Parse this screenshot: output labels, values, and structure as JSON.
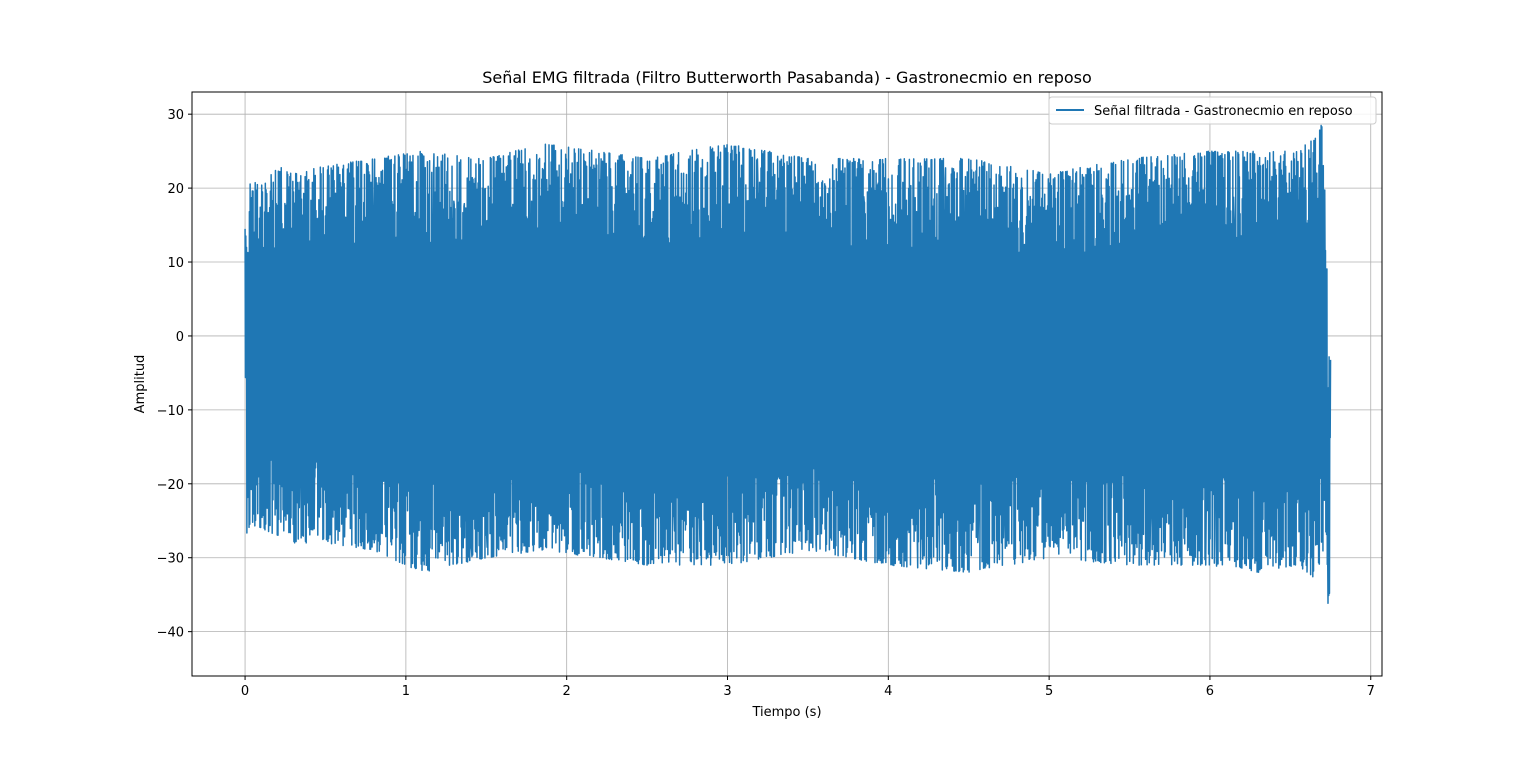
{
  "chart_data": {
    "type": "line",
    "title": "Señal EMG filtrada (Filtro Butterworth Pasabanda) - Gastronecmio en reposo",
    "xlabel": "Tiempo (s)",
    "ylabel": "Amplitud",
    "xlim": [
      -0.33,
      7.07
    ],
    "ylim": [
      -46,
      33
    ],
    "x_ticks": [
      0,
      1,
      2,
      3,
      4,
      5,
      6,
      7
    ],
    "y_ticks": [
      30,
      20,
      10,
      0,
      -10,
      -20,
      -30,
      -40
    ],
    "y_tick_labels": [
      "30",
      "20",
      "10",
      "0",
      "−10",
      "−20",
      "−30",
      "−40"
    ],
    "grid": true,
    "legend_position": "top-right",
    "series": [
      {
        "name": "Señal filtrada - Gastronecmio en reposo",
        "color": "#1f77b4",
        "x_start": 0,
        "x_end": 6.75,
        "typical_upper_peak": 22,
        "typical_lower_peak": -27,
        "max": 29,
        "min": -42,
        "envelope": [
          {
            "x": 0.0,
            "y": [
              0,
              16
            ]
          },
          {
            "x": 0.01,
            "y": [
              -27,
              16
            ]
          },
          {
            "x": 0.03,
            "y": [
              -26,
              21
            ]
          },
          {
            "x": 0.1,
            "y": [
              -26,
              21
            ]
          },
          {
            "x": 0.2,
            "y": [
              -27,
              23
            ]
          },
          {
            "x": 0.3,
            "y": [
              -28,
              22
            ]
          },
          {
            "x": 0.5,
            "y": [
              -28,
              23
            ]
          },
          {
            "x": 0.8,
            "y": [
              -29,
              24
            ]
          },
          {
            "x": 1.1,
            "y": [
              -32,
              25
            ]
          },
          {
            "x": 1.5,
            "y": [
              -30,
              24
            ]
          },
          {
            "x": 1.85,
            "y": [
              -29,
              26
            ]
          },
          {
            "x": 2.2,
            "y": [
              -30,
              25
            ]
          },
          {
            "x": 2.5,
            "y": [
              -31,
              24
            ]
          },
          {
            "x": 3.0,
            "y": [
              -31,
              26
            ]
          },
          {
            "x": 3.5,
            "y": [
              -29,
              24
            ]
          },
          {
            "x": 4.0,
            "y": [
              -31,
              24
            ]
          },
          {
            "x": 4.5,
            "y": [
              -32,
              24
            ]
          },
          {
            "x": 5.0,
            "y": [
              -30,
              22
            ]
          },
          {
            "x": 5.5,
            "y": [
              -31,
              24
            ]
          },
          {
            "x": 6.0,
            "y": [
              -31,
              25
            ]
          },
          {
            "x": 6.3,
            "y": [
              -32,
              25
            ]
          },
          {
            "x": 6.55,
            "y": [
              -31,
              25
            ]
          },
          {
            "x": 6.65,
            "y": [
              -33,
              27
            ]
          },
          {
            "x": 6.7,
            "y": [
              -30,
              29
            ]
          },
          {
            "x": 6.72,
            "y": [
              -26,
              21
            ]
          },
          {
            "x": 6.74,
            "y": [
              -42,
              -2
            ]
          },
          {
            "x": 6.75,
            "y": [
              -20,
              -2
            ]
          }
        ]
      }
    ]
  }
}
